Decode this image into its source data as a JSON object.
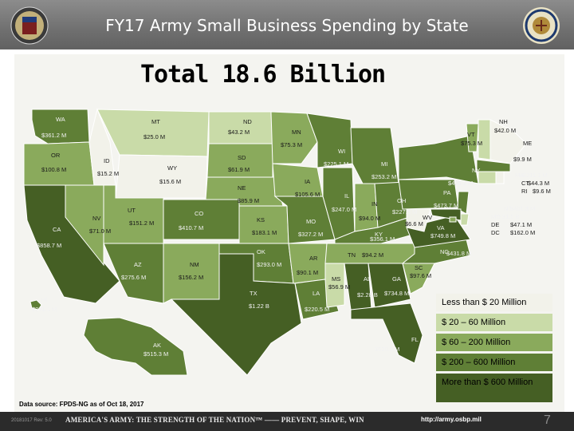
{
  "header": {
    "title": "FY17 Army Small Business Spending by State"
  },
  "subtitle": "Total 18.6 Billion",
  "legend": [
    {
      "label": "Less than $ 20 Million",
      "color": "#f2f2ea"
    },
    {
      "label": "$ 20 – 60 Million",
      "color": "#c9dba8"
    },
    {
      "label": "$ 60 – 200 Million",
      "color": "#8aaa5c"
    },
    {
      "label": "$ 200 – 600 Million",
      "color": "#5f7f36"
    },
    {
      "label": "More than $ 600 Million",
      "color": "#455f24"
    }
  ],
  "states": [
    {
      "code": "WA",
      "value": "$361.2 M"
    },
    {
      "code": "OR",
      "value": "$100.8 M"
    },
    {
      "code": "CA",
      "value": "$858.7 M"
    },
    {
      "code": "NV",
      "value": "$71.0 M"
    },
    {
      "code": "ID",
      "value": "$15.2 M"
    },
    {
      "code": "MT",
      "value": "$25.0 M"
    },
    {
      "code": "WY",
      "value": "$15.6 M"
    },
    {
      "code": "UT",
      "value": "$151.2 M"
    },
    {
      "code": "AZ",
      "value": "$275.6 M"
    },
    {
      "code": "CO",
      "value": "$410.7 M"
    },
    {
      "code": "NM",
      "value": "$156.2 M"
    },
    {
      "code": "ND",
      "value": "$43.2 M"
    },
    {
      "code": "SD",
      "value": "$61.9 M"
    },
    {
      "code": "NE",
      "value": "$85.9 M"
    },
    {
      "code": "KS",
      "value": "$183.1 M"
    },
    {
      "code": "OK",
      "value": "$293.0 M"
    },
    {
      "code": "TX",
      "value": "$1.22 B"
    },
    {
      "code": "MN",
      "value": "$75.3 M"
    },
    {
      "code": "IA",
      "value": "$105.6 M"
    },
    {
      "code": "MO",
      "value": "$327.2 M"
    },
    {
      "code": "AR",
      "value": "$90.1 M"
    },
    {
      "code": "LA",
      "value": "$220.5 M"
    },
    {
      "code": "WI",
      "value": "$225.1 M"
    },
    {
      "code": "IL",
      "value": "$247.0 M"
    },
    {
      "code": "MI",
      "value": "$253.2 M"
    },
    {
      "code": "IN",
      "value": "$94.0 M"
    },
    {
      "code": "OH",
      "value": "$227.3 M"
    },
    {
      "code": "KY",
      "value": "$356.1 M"
    },
    {
      "code": "TN",
      "value": "$94.2 M"
    },
    {
      "code": "MS",
      "value": "$56.9 M"
    },
    {
      "code": "AL",
      "value": "$2.28 B"
    },
    {
      "code": "GA",
      "value": "$734.8 M"
    },
    {
      "code": "FL",
      "value": "$620.0 M"
    },
    {
      "code": "SC",
      "value": "$97.6 M"
    },
    {
      "code": "NC",
      "value": "$431.8 M"
    },
    {
      "code": "VA",
      "value": "$749.8 M"
    },
    {
      "code": "WV",
      "value": "$6.6 M"
    },
    {
      "code": "PA",
      "value": "$473.7 M"
    },
    {
      "code": "NY",
      "value": "$425.2 M"
    },
    {
      "code": "VT",
      "value": "$75.3 M"
    },
    {
      "code": "NH",
      "value": "$42.0 M"
    },
    {
      "code": "ME",
      "value": ""
    },
    {
      "code": "MA",
      "value": "$211.1 M"
    },
    {
      "code": "CT",
      "value": "$44.3 M"
    },
    {
      "code": "RI",
      "value": "$9.6 M"
    },
    {
      "code": "NJ",
      "value": "$461.3 M"
    },
    {
      "code": "MD",
      "value": "$1.6 B"
    },
    {
      "code": "DE",
      "value": "$47.1 M"
    },
    {
      "code": "DC",
      "value": "$162.0 M"
    },
    {
      "code": "AK",
      "value": "$515.3 M"
    },
    {
      "code": "HI",
      "value": "$291.1 M"
    }
  ],
  "extra_values": [
    {
      "id": "maine-value",
      "value": "$9.9 M"
    }
  ],
  "source": "Data source: FPDS-NG as of Oct 18, 2017",
  "footer": {
    "date": "20181017 Rev: 5.0",
    "tagline": "AMERICA'S ARMY: THE STRENGTH OF THE NATION™ —— PREVENT, SHAPE, WIN",
    "url": "http://army.osbp.mil",
    "page": "7"
  }
}
